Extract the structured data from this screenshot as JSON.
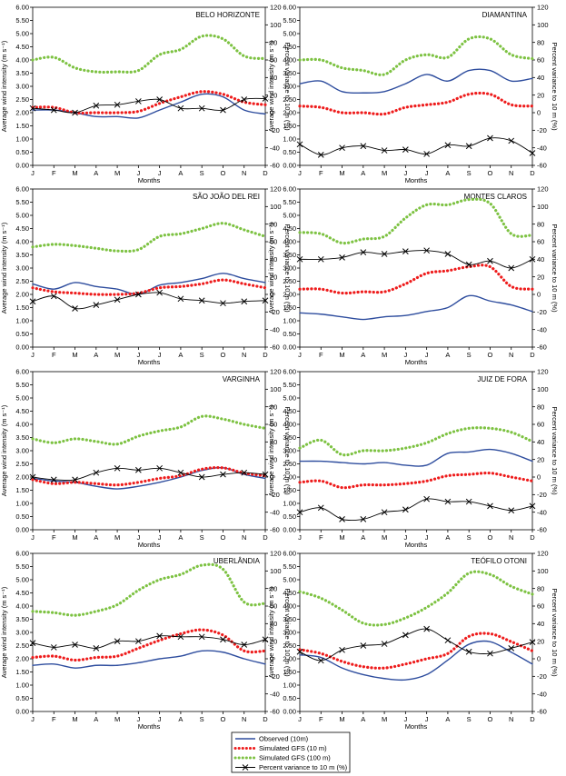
{
  "shared": {
    "months": [
      "J",
      "F",
      "M",
      "A",
      "M",
      "J",
      "J",
      "A",
      "S",
      "O",
      "N",
      "D"
    ],
    "xlabel": "Months",
    "ylabel_left": "Average wind intensity (m s⁻¹)",
    "ylabel_right": "Percent variance to 10 m (%)",
    "left_ticks": [
      "0.00",
      "0.50",
      "1.00",
      "1.50",
      "2.00",
      "2.50",
      "3.00",
      "3.50",
      "4.00",
      "4.50",
      "5.00",
      "5.50",
      "6.00"
    ],
    "right_ticks": [
      "-60",
      "-40",
      "-20",
      "0",
      "20",
      "40",
      "60",
      "80",
      "100",
      "120"
    ],
    "ylim_left": [
      0,
      6
    ],
    "ylim_right": [
      -60,
      120
    ]
  },
  "legend": {
    "items": [
      {
        "label": "Observed (10m)",
        "color": "#2e4d9e",
        "style": "solid"
      },
      {
        "label": "Simulated GFS (10 m)",
        "color": "#ee1c1c",
        "style": "dotted"
      },
      {
        "label": "Simulated GFS (100 m)",
        "color": "#7dc242",
        "style": "dotted"
      },
      {
        "label": "Percent variance to 10 m (%)",
        "color": "#000000",
        "style": "x-marker"
      }
    ]
  },
  "chart_data": [
    {
      "type": "line",
      "title": "BELO HORIZONTE",
      "categories": [
        "J",
        "F",
        "M",
        "A",
        "M",
        "J",
        "J",
        "A",
        "S",
        "O",
        "N",
        "D"
      ],
      "series": [
        {
          "name": "Observed (10m)",
          "axis": "left",
          "values": [
            2.1,
            2.1,
            2.0,
            1.85,
            1.85,
            1.8,
            2.1,
            2.4,
            2.7,
            2.6,
            2.1,
            1.95
          ]
        },
        {
          "name": "Simulated GFS (10 m)",
          "axis": "left",
          "values": [
            2.2,
            2.2,
            2.0,
            2.0,
            2.0,
            2.05,
            2.35,
            2.6,
            2.8,
            2.7,
            2.4,
            2.3
          ]
        },
        {
          "name": "Simulated GFS (100 m)",
          "axis": "left",
          "values": [
            4.0,
            4.1,
            3.7,
            3.55,
            3.55,
            3.6,
            4.2,
            4.4,
            4.9,
            4.8,
            4.15,
            4.05
          ]
        },
        {
          "name": "Percent variance to 10 m (%)",
          "axis": "right",
          "values": [
            5,
            3,
            0,
            8,
            9,
            13,
            15,
            5,
            5,
            3,
            15,
            16
          ]
        }
      ]
    },
    {
      "type": "line",
      "title": "DIAMANTINA",
      "categories": [
        "J",
        "F",
        "M",
        "A",
        "M",
        "J",
        "J",
        "A",
        "S",
        "O",
        "N",
        "D"
      ],
      "series": [
        {
          "name": "Observed (10m)",
          "axis": "left",
          "values": [
            3.1,
            3.2,
            2.8,
            2.75,
            2.8,
            3.1,
            3.45,
            3.2,
            3.6,
            3.6,
            3.2,
            3.3
          ]
        },
        {
          "name": "Simulated GFS (10 m)",
          "axis": "left",
          "values": [
            2.25,
            2.2,
            2.0,
            2.0,
            1.95,
            2.2,
            2.3,
            2.4,
            2.7,
            2.7,
            2.3,
            2.25
          ]
        },
        {
          "name": "Simulated GFS (100 m)",
          "axis": "left",
          "values": [
            4.0,
            4.0,
            3.7,
            3.6,
            3.45,
            4.0,
            4.2,
            4.1,
            4.8,
            4.8,
            4.2,
            4.05
          ]
        },
        {
          "name": "Percent variance to 10 m (%)",
          "axis": "right",
          "values": [
            -36,
            -48,
            -40,
            -38,
            -43,
            -42,
            -47,
            -37,
            -38,
            -29,
            -32,
            -46
          ]
        }
      ]
    },
    {
      "type": "line",
      "title": "SÃO JOÃO DEL REI",
      "categories": [
        "J",
        "F",
        "M",
        "A",
        "M",
        "J",
        "J",
        "A",
        "S",
        "O",
        "N",
        "D"
      ],
      "series": [
        {
          "name": "Observed (10m)",
          "axis": "left",
          "values": [
            2.4,
            2.2,
            2.45,
            2.3,
            2.2,
            2.0,
            2.35,
            2.45,
            2.6,
            2.8,
            2.6,
            2.45
          ]
        },
        {
          "name": "Simulated GFS (10 m)",
          "axis": "left",
          "values": [
            2.25,
            2.1,
            2.05,
            2.0,
            2.0,
            2.05,
            2.25,
            2.3,
            2.4,
            2.55,
            2.4,
            2.25
          ]
        },
        {
          "name": "Simulated GFS (100 m)",
          "axis": "left",
          "values": [
            3.8,
            3.9,
            3.85,
            3.75,
            3.65,
            3.7,
            4.2,
            4.3,
            4.5,
            4.7,
            4.45,
            4.2
          ]
        },
        {
          "name": "Percent variance to 10 m (%)",
          "axis": "right",
          "values": [
            -8,
            -2,
            -16,
            -12,
            -6,
            0,
            2,
            -5,
            -7,
            -10,
            -8,
            -7
          ]
        }
      ]
    },
    {
      "type": "line",
      "title": "MONTES CLAROS",
      "categories": [
        "J",
        "F",
        "M",
        "A",
        "M",
        "J",
        "J",
        "A",
        "S",
        "O",
        "N",
        "D"
      ],
      "series": [
        {
          "name": "Observed (10m)",
          "axis": "left",
          "values": [
            1.3,
            1.25,
            1.15,
            1.05,
            1.15,
            1.2,
            1.35,
            1.5,
            1.95,
            1.75,
            1.6,
            1.35
          ]
        },
        {
          "name": "Simulated GFS (10 m)",
          "axis": "left",
          "values": [
            2.2,
            2.2,
            2.05,
            2.1,
            2.1,
            2.4,
            2.8,
            2.9,
            3.05,
            3.05,
            2.3,
            2.2
          ]
        },
        {
          "name": "Simulated GFS (100 m)",
          "axis": "left",
          "values": [
            4.35,
            4.3,
            3.95,
            4.1,
            4.2,
            4.9,
            5.4,
            5.4,
            5.6,
            5.45,
            4.3,
            4.25
          ]
        },
        {
          "name": "Percent variance to 10 m (%)",
          "axis": "right",
          "values": [
            40,
            40,
            42,
            48,
            46,
            49,
            50,
            46,
            34,
            38,
            30,
            40
          ]
        }
      ]
    },
    {
      "type": "line",
      "title": "VARGINHA",
      "categories": [
        "J",
        "F",
        "M",
        "A",
        "M",
        "J",
        "J",
        "A",
        "S",
        "O",
        "N",
        "D"
      ],
      "series": [
        {
          "name": "Observed (10m)",
          "axis": "left",
          "values": [
            1.95,
            1.85,
            1.8,
            1.65,
            1.55,
            1.65,
            1.8,
            2.0,
            2.25,
            2.35,
            2.1,
            1.95
          ]
        },
        {
          "name": "Simulated GFS (10 m)",
          "axis": "left",
          "values": [
            1.9,
            1.75,
            1.8,
            1.75,
            1.7,
            1.8,
            1.95,
            2.05,
            2.3,
            2.35,
            2.15,
            2.05
          ]
        },
        {
          "name": "Simulated GFS (100 m)",
          "axis": "left",
          "values": [
            3.45,
            3.3,
            3.45,
            3.35,
            3.25,
            3.55,
            3.75,
            3.9,
            4.3,
            4.2,
            4.0,
            3.85
          ]
        },
        {
          "name": "Percent variance to 10 m (%)",
          "axis": "right",
          "values": [
            0,
            -3,
            -3,
            5,
            10,
            8,
            10,
            5,
            0,
            3,
            5,
            3
          ]
        }
      ]
    },
    {
      "type": "line",
      "title": "JUIZ DE FORA",
      "categories": [
        "J",
        "F",
        "M",
        "A",
        "M",
        "J",
        "J",
        "A",
        "S",
        "O",
        "N",
        "D"
      ],
      "series": [
        {
          "name": "Observed (10m)",
          "axis": "left",
          "values": [
            2.6,
            2.6,
            2.55,
            2.5,
            2.55,
            2.45,
            2.45,
            2.9,
            2.95,
            3.05,
            2.9,
            2.6
          ]
        },
        {
          "name": "Simulated GFS (10 m)",
          "axis": "left",
          "values": [
            1.8,
            1.85,
            1.6,
            1.7,
            1.7,
            1.75,
            1.85,
            2.05,
            2.1,
            2.15,
            2.0,
            1.85
          ]
        },
        {
          "name": "Simulated GFS (100 m)",
          "axis": "left",
          "values": [
            3.1,
            3.4,
            2.85,
            3.0,
            3.0,
            3.1,
            3.3,
            3.65,
            3.85,
            3.85,
            3.7,
            3.35
          ]
        },
        {
          "name": "Percent variance to 10 m (%)",
          "axis": "right",
          "values": [
            -40,
            -35,
            -48,
            -48,
            -40,
            -37,
            -25,
            -28,
            -28,
            -33,
            -38,
            -33
          ]
        }
      ]
    },
    {
      "type": "line",
      "title": "UBERLÂNDIA",
      "categories": [
        "J",
        "F",
        "M",
        "A",
        "M",
        "J",
        "J",
        "A",
        "S",
        "O",
        "N",
        "D"
      ],
      "series": [
        {
          "name": "Observed (10m)",
          "axis": "left",
          "values": [
            1.75,
            1.8,
            1.65,
            1.75,
            1.75,
            1.85,
            2.0,
            2.1,
            2.3,
            2.25,
            2.0,
            1.8
          ]
        },
        {
          "name": "Simulated GFS (10 m)",
          "axis": "left",
          "values": [
            2.05,
            2.1,
            1.95,
            2.05,
            2.1,
            2.4,
            2.7,
            2.95,
            3.1,
            2.9,
            2.3,
            2.3
          ]
        },
        {
          "name": "Simulated GFS (100 m)",
          "axis": "left",
          "values": [
            3.8,
            3.75,
            3.65,
            3.8,
            4.05,
            4.6,
            5.0,
            5.2,
            5.55,
            5.4,
            4.15,
            4.1
          ]
        },
        {
          "name": "Percent variance to 10 m (%)",
          "axis": "right",
          "values": [
            18,
            13,
            16,
            12,
            20,
            20,
            26,
            25,
            25,
            22,
            16,
            22
          ]
        }
      ]
    },
    {
      "type": "line",
      "title": "TEÓFILO OTONI",
      "categories": [
        "J",
        "F",
        "M",
        "A",
        "M",
        "J",
        "J",
        "A",
        "S",
        "O",
        "N",
        "D"
      ],
      "series": [
        {
          "name": "Observed (10m)",
          "axis": "left",
          "values": [
            2.15,
            2.05,
            1.65,
            1.4,
            1.25,
            1.2,
            1.4,
            1.95,
            2.55,
            2.65,
            2.25,
            1.8
          ]
        },
        {
          "name": "Simulated GFS (10 m)",
          "axis": "left",
          "values": [
            2.35,
            2.2,
            1.9,
            1.7,
            1.65,
            1.8,
            2.0,
            2.2,
            2.85,
            2.95,
            2.65,
            2.3
          ]
        },
        {
          "name": "Simulated GFS (100 m)",
          "axis": "left",
          "values": [
            4.55,
            4.3,
            3.85,
            3.35,
            3.3,
            3.55,
            3.95,
            4.5,
            5.25,
            5.2,
            4.75,
            4.45
          ]
        },
        {
          "name": "Percent variance to 10 m (%)",
          "axis": "right",
          "values": [
            8,
            -2,
            10,
            15,
            17,
            27,
            34,
            21,
            8,
            6,
            12,
            19
          ]
        }
      ]
    }
  ]
}
